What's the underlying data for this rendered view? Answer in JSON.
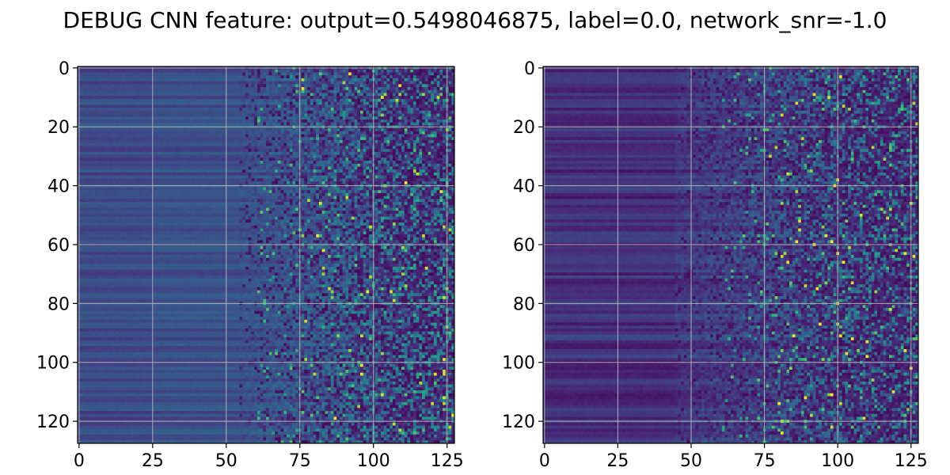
{
  "title": "DEBUG CNN feature: output=0.5498046875, label=0.0, network_snr=-1.0",
  "chart_data": [
    {
      "type": "heatmap",
      "title": "",
      "xlabel": "",
      "ylabel": "",
      "rows": 128,
      "cols": 128,
      "colormap": "viridis",
      "xlim": [
        -0.5,
        127.5
      ],
      "ylim": [
        127.5,
        -0.5
      ],
      "xticks": [
        0,
        25,
        50,
        75,
        100,
        125
      ],
      "yticks": [
        0,
        20,
        40,
        60,
        80,
        100,
        120
      ],
      "xtick_labels": [
        "0",
        "25",
        "50",
        "75",
        "100",
        "125"
      ],
      "ytick_labels": [
        "0",
        "20",
        "40",
        "60",
        "80",
        "100",
        "120"
      ],
      "grid": true,
      "legend": "none",
      "pattern": "smooth low-valued horizontal bands for columns 0-55 (values ~0.15-0.35), increasingly noisy columns 55-127 with sparse bright pixels (up to ~1.0) mostly beyond column 75",
      "value_range": [
        0,
        1
      ]
    },
    {
      "type": "heatmap",
      "title": "",
      "xlabel": "",
      "ylabel": "",
      "rows": 128,
      "cols": 128,
      "colormap": "viridis",
      "xlim": [
        -0.5,
        127.5
      ],
      "ylim": [
        127.5,
        -0.5
      ],
      "xticks": [
        0,
        25,
        50,
        75,
        100,
        125
      ],
      "yticks": [
        0,
        20,
        40,
        60,
        80,
        100,
        120
      ],
      "xtick_labels": [
        "0",
        "25",
        "50",
        "75",
        "100",
        "125"
      ],
      "ytick_labels": [
        "0",
        "20",
        "40",
        "60",
        "80",
        "100",
        "120"
      ],
      "grid": true,
      "legend": "none",
      "pattern": "darker smooth horizontal bands for columns 0-45 (values ~0.05-0.25), noisy speckled region for columns 45-127 with sparse bright pixels (up to ~1.0)",
      "value_range": [
        0,
        1
      ]
    }
  ]
}
